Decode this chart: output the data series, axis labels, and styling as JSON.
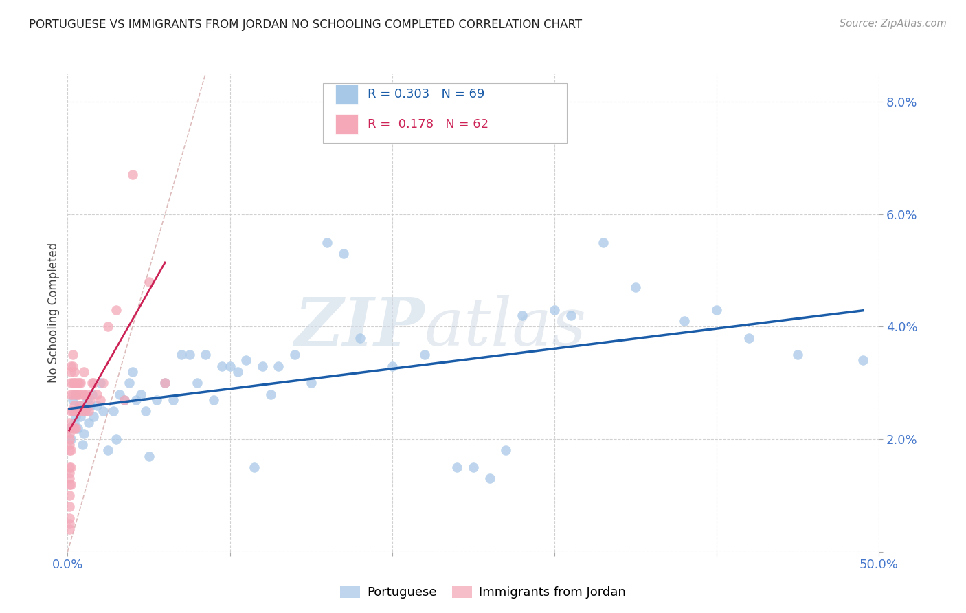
{
  "title": "PORTUGUESE VS IMMIGRANTS FROM JORDAN NO SCHOOLING COMPLETED CORRELATION CHART",
  "source": "Source: ZipAtlas.com",
  "ylabel": "No Schooling Completed",
  "xlim": [
    0.0,
    0.5
  ],
  "ylim": [
    0.0,
    0.085
  ],
  "blue_color": "#A8C8E8",
  "pink_color": "#F4A8B8",
  "blue_line_color": "#1A5CA8",
  "pink_line_color": "#CC2255",
  "diag_line_color": "#DDBBBB",
  "axis_color": "#4477CC",
  "legend_r_blue": "0.303",
  "legend_n_blue": "69",
  "legend_r_pink": "0.178",
  "legend_n_pink": "62",
  "watermark_zip": "ZIP",
  "watermark_atlas": "atlas",
  "blue_x": [
    0.001,
    0.002,
    0.003,
    0.003,
    0.004,
    0.005,
    0.005,
    0.006,
    0.007,
    0.008,
    0.009,
    0.01,
    0.011,
    0.012,
    0.013,
    0.014,
    0.015,
    0.016,
    0.018,
    0.02,
    0.022,
    0.025,
    0.028,
    0.03,
    0.032,
    0.035,
    0.038,
    0.04,
    0.042,
    0.045,
    0.048,
    0.05,
    0.055,
    0.06,
    0.065,
    0.07,
    0.075,
    0.08,
    0.085,
    0.09,
    0.095,
    0.1,
    0.105,
    0.11,
    0.115,
    0.12,
    0.125,
    0.13,
    0.14,
    0.15,
    0.16,
    0.17,
    0.18,
    0.2,
    0.22,
    0.24,
    0.25,
    0.26,
    0.27,
    0.28,
    0.3,
    0.31,
    0.33,
    0.35,
    0.38,
    0.4,
    0.42,
    0.45,
    0.49
  ],
  "blue_y": [
    0.022,
    0.02,
    0.025,
    0.027,
    0.023,
    0.028,
    0.024,
    0.022,
    0.026,
    0.024,
    0.019,
    0.021,
    0.025,
    0.027,
    0.023,
    0.026,
    0.028,
    0.024,
    0.026,
    0.03,
    0.025,
    0.018,
    0.025,
    0.02,
    0.028,
    0.027,
    0.03,
    0.032,
    0.027,
    0.028,
    0.025,
    0.017,
    0.027,
    0.03,
    0.027,
    0.035,
    0.035,
    0.03,
    0.035,
    0.027,
    0.033,
    0.033,
    0.032,
    0.034,
    0.015,
    0.033,
    0.028,
    0.033,
    0.035,
    0.03,
    0.055,
    0.053,
    0.038,
    0.033,
    0.035,
    0.015,
    0.015,
    0.013,
    0.018,
    0.042,
    0.043,
    0.042,
    0.055,
    0.047,
    0.041,
    0.043,
    0.038,
    0.035,
    0.034
  ],
  "pink_x": [
    0.001,
    0.001,
    0.001,
    0.001,
    0.001,
    0.001,
    0.001,
    0.001,
    0.001,
    0.001,
    0.001,
    0.001,
    0.001,
    0.001,
    0.001,
    0.002,
    0.002,
    0.002,
    0.002,
    0.002,
    0.002,
    0.002,
    0.002,
    0.003,
    0.003,
    0.003,
    0.003,
    0.003,
    0.004,
    0.004,
    0.004,
    0.004,
    0.005,
    0.005,
    0.005,
    0.005,
    0.006,
    0.006,
    0.006,
    0.007,
    0.007,
    0.008,
    0.008,
    0.009,
    0.009,
    0.01,
    0.01,
    0.011,
    0.012,
    0.013,
    0.014,
    0.015,
    0.016,
    0.018,
    0.02,
    0.022,
    0.025,
    0.03,
    0.035,
    0.04,
    0.05,
    0.06
  ],
  "pink_y": [
    0.02,
    0.021,
    0.019,
    0.022,
    0.023,
    0.018,
    0.015,
    0.014,
    0.013,
    0.012,
    0.01,
    0.008,
    0.006,
    0.005,
    0.004,
    0.025,
    0.028,
    0.03,
    0.032,
    0.033,
    0.018,
    0.015,
    0.012,
    0.03,
    0.035,
    0.033,
    0.028,
    0.025,
    0.032,
    0.03,
    0.026,
    0.022,
    0.03,
    0.028,
    0.025,
    0.022,
    0.03,
    0.028,
    0.025,
    0.03,
    0.028,
    0.03,
    0.026,
    0.028,
    0.025,
    0.032,
    0.028,
    0.025,
    0.028,
    0.025,
    0.027,
    0.03,
    0.03,
    0.028,
    0.027,
    0.03,
    0.04,
    0.043,
    0.027,
    0.067,
    0.048,
    0.03
  ]
}
